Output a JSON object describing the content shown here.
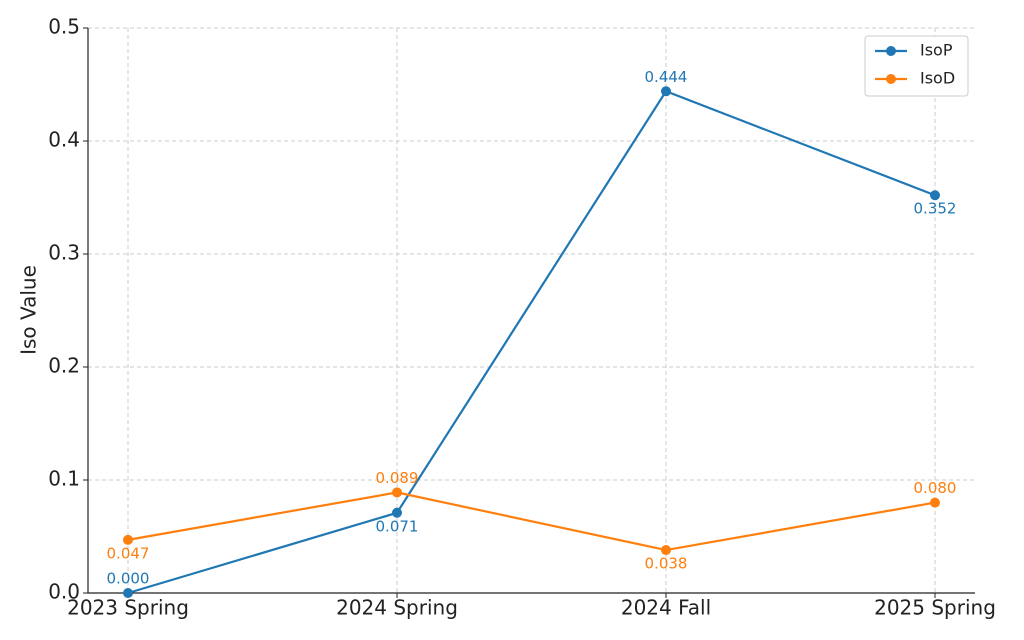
{
  "chart_data": {
    "type": "line",
    "y_label": "Iso Value",
    "categories": [
      "2023 Spring",
      "2024 Spring",
      "2024 Fall",
      "2025 Spring"
    ],
    "series": [
      {
        "name": "IsoP",
        "color": "#1f77b4",
        "values": [
          0,
          0.071,
          0.444,
          0.352
        ],
        "value_labels": [
          "0.000",
          "0.071",
          "0.444",
          "0.352"
        ]
      },
      {
        "name": "IsoD",
        "color": "#ff7f0e",
        "values": [
          0.047,
          0.089,
          0.038,
          0.08
        ],
        "value_labels": [
          "0.047",
          "0.089",
          "0.038",
          "0.080"
        ]
      }
    ],
    "ylim": [
      0,
      0.5
    ],
    "yticks": [
      {
        "value": 0,
        "label": "0.0"
      },
      0.1,
      0.2,
      0.3,
      0.4,
      0.5
    ],
    "grid": true,
    "legend": "upper right"
  }
}
